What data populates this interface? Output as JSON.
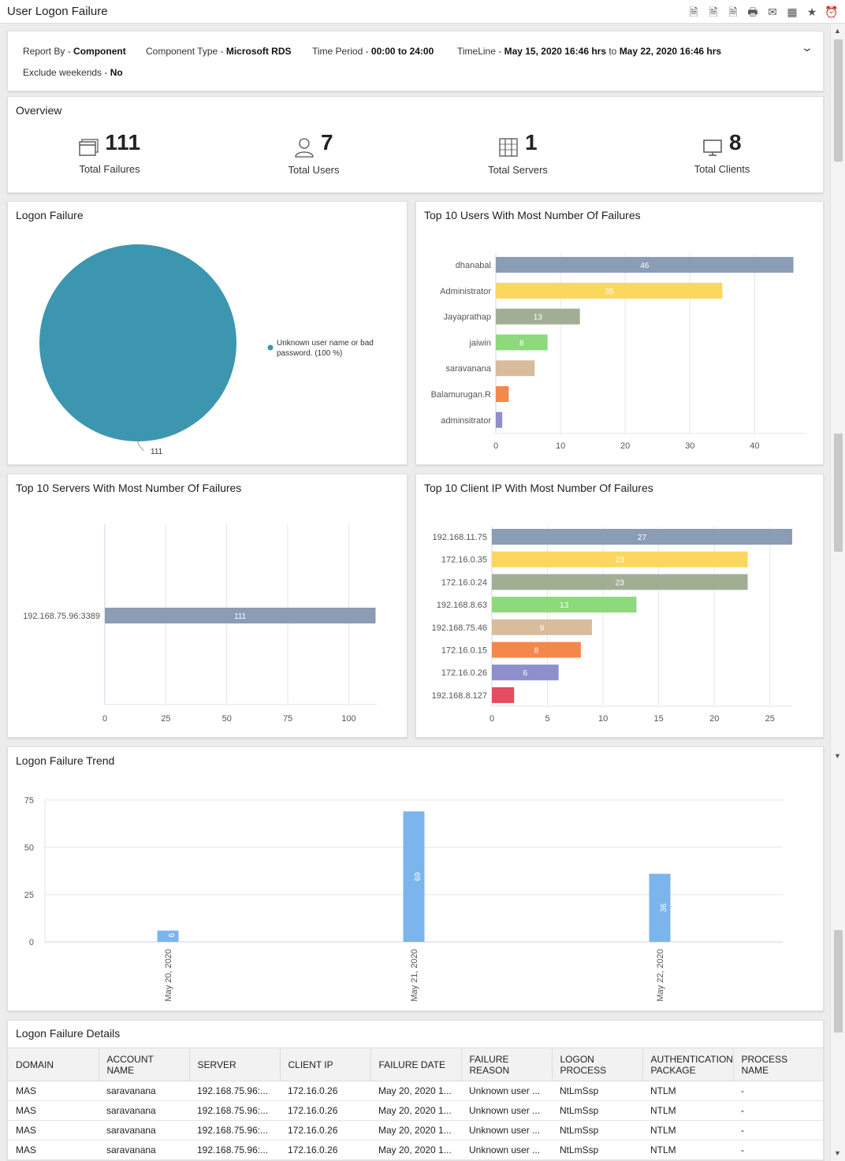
{
  "header": {
    "title": "User Logon Failure"
  },
  "toolbar_icons": [
    "pdf-export-icon",
    "word-export-icon",
    "pdf-download-icon",
    "print-preview-icon",
    "email-icon",
    "excel-export-icon",
    "star-icon",
    "alarm-clock-icon"
  ],
  "filters": {
    "report_by_label": "Report By - ",
    "report_by_value": "Component",
    "component_type_label": "Component Type - ",
    "component_type_value": "Microsoft RDS",
    "time_period_label": "Time Period - ",
    "time_period_value": "00:00 to 24:00",
    "timeline_label": "TimeLine - ",
    "timeline_from": "May 15, 2020 16:46 hrs",
    "timeline_to_word": " to ",
    "timeline_to": "May 22, 2020 16:46 hrs",
    "exclude_label": "Exclude weekends - ",
    "exclude_value": "No"
  },
  "overview": {
    "title": "Overview",
    "stats": [
      {
        "value": "111",
        "label": "Total Failures",
        "icon": "window-icon"
      },
      {
        "value": "7",
        "label": "Total Users",
        "icon": "user-icon"
      },
      {
        "value": "1",
        "label": "Total Servers",
        "icon": "server-icon"
      },
      {
        "value": "8",
        "label": "Total Clients",
        "icon": "monitor-icon"
      }
    ]
  },
  "logon_failure": {
    "title": "Logon Failure",
    "chart_data": {
      "type": "pie",
      "slices": [
        {
          "label": "Unknown user name or bad password. (100 %)",
          "value": 111,
          "color": "#3d96b0"
        }
      ],
      "data_label": "111"
    }
  },
  "top_users": {
    "title": "Top 10 Users With Most Number Of Failures",
    "chart_data": {
      "type": "bar",
      "orientation": "horizontal",
      "categories": [
        "dhanabal",
        "Administrator",
        "Jayaprathap",
        "jaiwin",
        "saravanana",
        "Balamurugan.R",
        "adminsitrator"
      ],
      "values": [
        46,
        35,
        13,
        8,
        6,
        2,
        1
      ],
      "labels": [
        "46",
        "35",
        "13",
        "8",
        "",
        "",
        ""
      ],
      "colors": [
        "#8a9db5",
        "#fcd75e",
        "#a2ae94",
        "#8dd97c",
        "#d8bc9c",
        "#f4884a",
        "#8f8fcc"
      ],
      "xlim": [
        0,
        48
      ],
      "ticks": [
        "0",
        "10",
        "20",
        "30",
        "40"
      ],
      "tick_values": [
        0,
        10,
        20,
        30,
        40
      ]
    }
  },
  "top_servers": {
    "title": "Top 10 Servers With Most Number Of Failures",
    "chart_data": {
      "type": "bar",
      "orientation": "horizontal",
      "categories": [
        "192.168.75.96:3389"
      ],
      "values": [
        111
      ],
      "labels": [
        "111"
      ],
      "colors": [
        "#8a9db5"
      ],
      "xlim": [
        0,
        111.5
      ],
      "ticks": [
        "0",
        "25",
        "50",
        "75",
        "100"
      ],
      "tick_values": [
        0,
        25,
        50,
        75,
        100
      ]
    }
  },
  "top_clients": {
    "title": "Top 10 Client IP With Most Number Of Failures",
    "chart_data": {
      "type": "bar",
      "orientation": "horizontal",
      "categories": [
        "192.168.11.75",
        "172.16.0.35",
        "172.16.0.24",
        "192.168.8.63",
        "192.168.75.46",
        "172.16.0.15",
        "172.16.0.26",
        "192.168.8.127"
      ],
      "values": [
        27,
        23,
        23,
        13,
        9,
        8,
        6,
        2
      ],
      "labels": [
        "27",
        "23",
        "23",
        "13",
        "9",
        "8",
        "6",
        ""
      ],
      "colors": [
        "#8a9db5",
        "#fcd75e",
        "#a2ae94",
        "#8dd97c",
        "#d8bc9c",
        "#f4884a",
        "#8f8fcc",
        "#e84a5f"
      ],
      "xlim": [
        0,
        27
      ],
      "ticks": [
        "0",
        "5",
        "10",
        "15",
        "20",
        "25"
      ],
      "tick_values": [
        0,
        5,
        10,
        15,
        20,
        25
      ]
    }
  },
  "trend": {
    "title": "Logon Failure Trend",
    "chart_data": {
      "type": "bar",
      "categories": [
        "May 20, 2020",
        "May 21, 2020",
        "May 22, 2020"
      ],
      "values": [
        6,
        69,
        36
      ],
      "labels": [
        "6",
        "69",
        "36"
      ],
      "color": "#7cb5ec",
      "ylim": [
        0,
        75
      ],
      "ticks": [
        "0",
        "25",
        "50",
        "75"
      ],
      "tick_values": [
        0,
        25,
        50,
        75
      ]
    }
  },
  "details": {
    "title": "Logon Failure Details",
    "columns": [
      "DOMAIN",
      "ACCOUNT NAME",
      "SERVER",
      "CLIENT IP",
      "FAILURE DATE",
      "FAILURE REASON",
      "LOGON PROCESS",
      "AUTHENTICATION PACKAGE",
      "PROCESS NAME"
    ],
    "rows": [
      [
        "MAS",
        "saravanana",
        "192.168.75.96:...",
        "172.16.0.26",
        "May 20, 2020 1...",
        "Unknown user ...",
        "NtLmSsp",
        "NTLM",
        "-"
      ],
      [
        "MAS",
        "saravanana",
        "192.168.75.96:...",
        "172.16.0.26",
        "May 20, 2020 1...",
        "Unknown user ...",
        "NtLmSsp",
        "NTLM",
        "-"
      ],
      [
        "MAS",
        "saravanana",
        "192.168.75.96:...",
        "172.16.0.26",
        "May 20, 2020 1...",
        "Unknown user ...",
        "NtLmSsp",
        "NTLM",
        "-"
      ],
      [
        "MAS",
        "saravanana",
        "192.168.75.96:...",
        "172.16.0.26",
        "May 20, 2020 1...",
        "Unknown user ...",
        "NtLmSsp",
        "NTLM",
        "-"
      ]
    ]
  }
}
